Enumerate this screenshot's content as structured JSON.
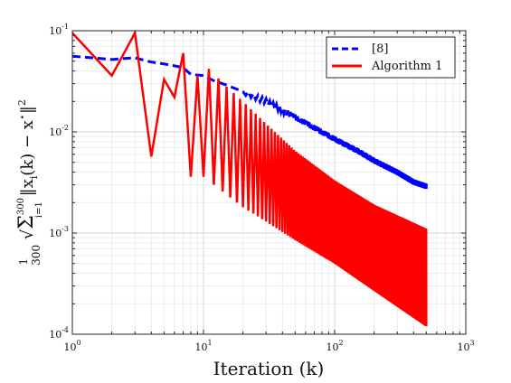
{
  "chart_data": {
    "type": "line",
    "title": "",
    "xlabel": "Iteration (k)",
    "ylabel": "(1/300) √( Σ_{i=1}^{300} ||x_i(k) − x*||² )",
    "xscale": "log",
    "yscale": "log",
    "xlim": [
      1,
      1000
    ],
    "ylim": [
      0.0001,
      0.1
    ],
    "xticks": [
      "10^0",
      "10^1",
      "10^2",
      "10^3"
    ],
    "yticks": [
      "10^-4",
      "10^-3",
      "10^-2",
      "10^-1"
    ],
    "grid": "on (major and minor)",
    "legend_position": "top-right",
    "series": [
      {
        "name": "[8]",
        "color": "#0000ff",
        "style": "dashed",
        "description": "slowly decaying curve with small oscillation",
        "points": [
          [
            1,
            0.056
          ],
          [
            2,
            0.052
          ],
          [
            3,
            0.054
          ],
          [
            4,
            0.049
          ],
          [
            5,
            0.047
          ],
          [
            6,
            0.045
          ],
          [
            7,
            0.043
          ],
          [
            8,
            0.037
          ],
          [
            10,
            0.036
          ],
          [
            12,
            0.032
          ],
          [
            15,
            0.029
          ],
          [
            20,
            0.025
          ],
          [
            30,
            0.02
          ],
          [
            50,
            0.014
          ],
          [
            70,
            0.011
          ],
          [
            100,
            0.0085
          ],
          [
            150,
            0.0065
          ],
          [
            200,
            0.0052
          ],
          [
            300,
            0.004
          ],
          [
            400,
            0.0032
          ],
          [
            500,
            0.0029
          ]
        ]
      },
      {
        "name": "Algorithm 1",
        "color": "#ff0000",
        "style": "solid",
        "description": "oscillating between an upper and lower envelope",
        "peaks": [
          [
            1,
            0.095
          ],
          [
            3,
            0.095
          ],
          [
            5,
            0.033
          ],
          [
            7,
            0.06
          ],
          [
            11,
            0.042
          ],
          [
            15,
            0.028
          ],
          [
            20,
            0.02
          ],
          [
            30,
            0.012
          ],
          [
            50,
            0.0065
          ],
          [
            100,
            0.0033
          ],
          [
            200,
            0.0019
          ],
          [
            500,
            0.0011
          ]
        ],
        "troughs": [
          [
            2,
            0.036
          ],
          [
            4,
            0.0057
          ],
          [
            8,
            0.0036
          ],
          [
            10,
            0.0036
          ],
          [
            15,
            0.0024
          ],
          [
            20,
            0.0018
          ],
          [
            30,
            0.0013
          ],
          [
            50,
            0.00085
          ],
          [
            100,
            0.0005
          ],
          [
            200,
            0.00027
          ],
          [
            500,
            0.00012
          ]
        ]
      }
    ]
  }
}
